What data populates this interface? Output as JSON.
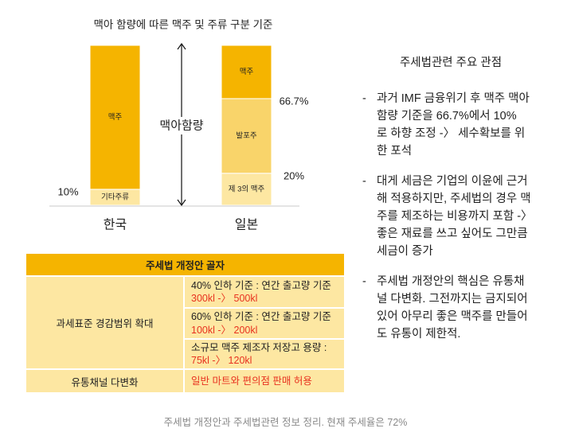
{
  "chart_data": {
    "type": "bar",
    "stacked": true,
    "title": "맥아 함량에 따른 맥주 및 주류 구분 기준",
    "categories": [
      "한국",
      "일본"
    ],
    "axis_label": "맥아함량",
    "unit": "%",
    "ylim": [
      0,
      100
    ],
    "grid": false,
    "legend": "none",
    "bars": [
      {
        "category": "한국",
        "segments": [
          {
            "label": "기타주류",
            "from": 0,
            "to": 10,
            "color": "#FDE7A2"
          },
          {
            "label": "맥주",
            "from": 10,
            "to": 100,
            "color": "#F5B400"
          }
        ]
      },
      {
        "category": "일본",
        "segments": [
          {
            "label": "제 3의 맥주",
            "from": 0,
            "to": 20,
            "color": "#FDE7A2"
          },
          {
            "label": "발포주",
            "from": 20,
            "to": 66.7,
            "color": "#F9D46A"
          },
          {
            "label": "맥주",
            "from": 66.7,
            "to": 100,
            "color": "#F5B400"
          }
        ]
      }
    ],
    "threshold_labels": [
      {
        "category": "한국",
        "value": 10,
        "text": "10%",
        "side": "left"
      },
      {
        "category": "일본",
        "value": 66.7,
        "text": "66.7%",
        "side": "right"
      },
      {
        "category": "일본",
        "value": 20,
        "text": "20%",
        "side": "right"
      }
    ]
  },
  "side_panel": {
    "heading": "주세법관련 주요 관점",
    "bullet_marker": "-",
    "bullets": [
      {
        "lines": [
          "과거 IMF 금융위기 후 맥주 맥아",
          "함량 기준을 66.7%에서 10%",
          "로 하향 조정 -〉 세수확보를 위",
          "한 포석"
        ]
      },
      {
        "lines": [
          "대게 세금은 기업의 이윤에 근거",
          "해 적용하지만, 주세법의 경우 맥",
          "주를 제조하는 비용까지 포함 -〉",
          "좋은 재료를 쓰고 싶어도 그만큼",
          "세금이 증가"
        ]
      },
      {
        "lines": [
          "주세법 개정안의 핵심은 유통채",
          "널 다변화. 그전까지는 금지되어",
          "있어 아무리 좋은 맥주를 만들어",
          "도 유통이 제한적."
        ]
      }
    ]
  },
  "table": {
    "title": "주세법 개정안 골자",
    "tax_row": {
      "label": "과세표준 경감범위 확대",
      "items": [
        {
          "text": "40% 인하 기준 : 연간 출고량 기준",
          "change": "300kl -〉 500kl"
        },
        {
          "text": "60% 인하 기준 : 연간 출고량 기준",
          "change": "100kl -〉 200kl"
        },
        {
          "text": "소규모 맥주 제조자 저장고 용량 :",
          "change": "75kl -〉 120kl"
        }
      ]
    },
    "channel_row": {
      "label": "유통채널 다변화",
      "value": "일반 마트와 편의점 판매 허용"
    }
  },
  "caption": "주세법 개정안과 주세법관련 정보 정리. 현재 주세율은 72%",
  "colors": {
    "accent": "#F5B400",
    "light": "#FDE7A2",
    "mid": "#F9D46A",
    "highlight": "#E8321F",
    "text": "#222222",
    "caption": "#8A8A8A"
  }
}
